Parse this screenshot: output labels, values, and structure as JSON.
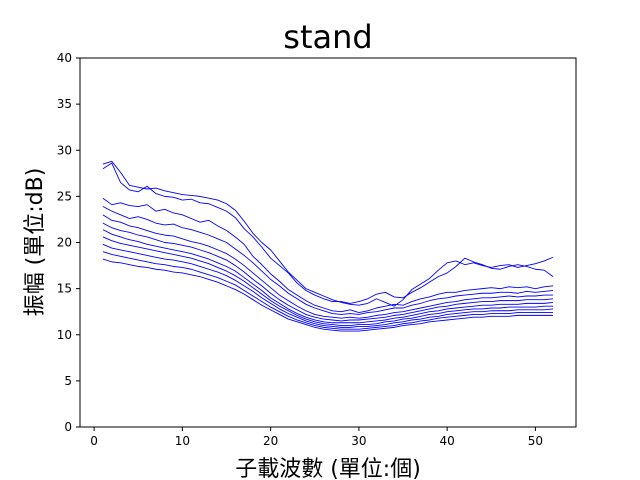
{
  "chart_data": {
    "type": "line",
    "title": "stand",
    "xlabel": "子載波數 (單位:個)",
    "ylabel": "振幅 (單位:dB)",
    "xlim": [
      -1.6,
      54.6
    ],
    "ylim": [
      0,
      40
    ],
    "xticks": [
      "0",
      "10",
      "20",
      "30",
      "40",
      "50"
    ],
    "yticks": [
      "0",
      "5",
      "10",
      "15",
      "20",
      "25",
      "30",
      "35",
      "40"
    ],
    "grid": false,
    "legend": "none",
    "line_color": "#0000ff",
    "x": [
      1,
      2,
      3,
      4,
      5,
      6,
      7,
      8,
      9,
      10,
      11,
      12,
      13,
      14,
      15,
      16,
      17,
      18,
      19,
      20,
      21,
      22,
      23,
      24,
      25,
      26,
      27,
      28,
      29,
      30,
      31,
      32,
      33,
      34,
      35,
      36,
      37,
      38,
      39,
      40,
      41,
      42,
      43,
      44,
      45,
      46,
      47,
      48,
      49,
      50,
      51,
      52
    ],
    "series": [
      {
        "values": [
          28.5,
          28.8,
          27.6,
          26.2,
          26.0,
          25.8,
          25.9,
          25.6,
          25.4,
          25.2,
          25.1,
          25.0,
          24.8,
          24.6,
          24.2,
          23.5,
          22.3,
          21.0,
          20.0,
          19.2,
          18.0,
          16.8,
          15.9,
          15.0,
          14.6,
          14.2,
          13.8,
          13.5,
          13.3,
          13.2,
          13.4,
          13.9,
          13.5,
          13.1,
          13.8,
          14.9,
          15.5,
          16.1,
          17.0,
          17.8,
          18.0,
          17.6,
          17.8,
          17.5,
          17.3,
          17.5,
          17.6,
          17.3,
          17.5,
          17.7,
          18.0,
          18.4
        ]
      },
      {
        "values": [
          28.0,
          28.6,
          26.5,
          25.7,
          25.5,
          26.1,
          25.3,
          25.0,
          24.9,
          24.6,
          24.7,
          24.3,
          24.2,
          23.8,
          23.4,
          22.7,
          21.5,
          20.6,
          19.5,
          18.3,
          17.5,
          16.7,
          15.6,
          14.8,
          14.3,
          13.9,
          13.6,
          13.6,
          13.4,
          13.6,
          13.9,
          14.4,
          14.6,
          14.1,
          14.0,
          14.6,
          15.1,
          15.7,
          16.3,
          16.7,
          17.4,
          18.3,
          17.9,
          17.6,
          17.2,
          17.1,
          17.4,
          17.6,
          17.4,
          17.1,
          17.0,
          16.3
        ]
      },
      {
        "values": [
          24.8,
          24.1,
          24.3,
          24.0,
          23.9,
          24.1,
          23.4,
          23.6,
          23.2,
          23.0,
          22.6,
          22.2,
          22.4,
          21.8,
          21.3,
          20.6,
          19.8,
          18.5,
          17.6,
          16.6,
          15.8,
          14.9,
          14.3,
          13.7,
          13.2,
          12.9,
          12.6,
          12.5,
          12.7,
          12.4,
          12.6,
          12.9,
          13.1,
          13.3,
          13.2,
          13.6,
          13.9,
          14.1,
          14.4,
          14.6,
          14.6,
          14.8,
          14.9,
          15.0,
          15.1,
          15.0,
          15.2,
          15.1,
          15.2,
          15.0,
          15.2,
          15.3
        ]
      },
      {
        "values": [
          23.9,
          23.4,
          23.0,
          22.6,
          22.8,
          22.5,
          22.1,
          21.9,
          22.0,
          21.6,
          21.4,
          21.1,
          20.8,
          20.4,
          20.0,
          19.3,
          18.6,
          17.8,
          16.9,
          16.0,
          15.3,
          14.5,
          13.9,
          13.3,
          12.9,
          12.6,
          12.3,
          12.2,
          12.3,
          12.2,
          12.4,
          12.5,
          12.7,
          12.9,
          12.9,
          13.2,
          13.4,
          13.7,
          13.9,
          14.0,
          14.2,
          14.3,
          14.4,
          14.5,
          14.5,
          14.6,
          14.6,
          14.5,
          14.7,
          14.6,
          14.7,
          14.8
        ]
      },
      {
        "values": [
          23.0,
          22.4,
          22.2,
          21.8,
          21.6,
          21.3,
          21.0,
          20.8,
          20.7,
          20.4,
          20.1,
          19.9,
          19.6,
          19.2,
          18.8,
          18.2,
          17.5,
          16.7,
          15.9,
          15.1,
          14.3,
          13.7,
          13.1,
          12.6,
          12.2,
          12.0,
          11.9,
          11.8,
          11.9,
          11.8,
          11.9,
          12.1,
          12.2,
          12.4,
          12.5,
          12.7,
          12.9,
          13.1,
          13.3,
          13.5,
          13.6,
          13.8,
          13.9,
          14.0,
          14.0,
          14.1,
          14.2,
          14.1,
          14.2,
          14.2,
          14.3,
          14.3
        ]
      },
      {
        "values": [
          22.1,
          21.6,
          21.3,
          21.1,
          20.8,
          20.6,
          20.3,
          20.0,
          19.9,
          19.7,
          19.5,
          19.2,
          18.9,
          18.5,
          18.1,
          17.5,
          16.8,
          16.0,
          15.3,
          14.5,
          13.8,
          13.2,
          12.7,
          12.2,
          11.9,
          11.7,
          11.6,
          11.5,
          11.6,
          11.6,
          11.7,
          11.8,
          11.9,
          12.1,
          12.2,
          12.4,
          12.6,
          12.8,
          13.0,
          13.1,
          13.3,
          13.4,
          13.5,
          13.6,
          13.6,
          13.7,
          13.7,
          13.7,
          13.8,
          13.8,
          13.8,
          13.9
        ]
      },
      {
        "values": [
          21.4,
          20.9,
          20.6,
          20.3,
          20.1,
          19.8,
          19.6,
          19.4,
          19.2,
          19.0,
          18.8,
          18.5,
          18.2,
          17.8,
          17.4,
          16.9,
          16.2,
          15.5,
          14.8,
          14.0,
          13.4,
          12.8,
          12.3,
          11.9,
          11.6,
          11.4,
          11.3,
          11.3,
          11.3,
          11.3,
          11.4,
          11.5,
          11.6,
          11.8,
          11.9,
          12.1,
          12.3,
          12.5,
          12.6,
          12.8,
          12.9,
          13.0,
          13.1,
          13.2,
          13.2,
          13.3,
          13.3,
          13.3,
          13.4,
          13.4,
          13.4,
          13.5
        ]
      },
      {
        "values": [
          20.6,
          20.2,
          19.9,
          19.7,
          19.5,
          19.3,
          19.1,
          18.9,
          18.7,
          18.5,
          18.3,
          18.0,
          17.7,
          17.3,
          16.9,
          16.4,
          15.8,
          15.1,
          14.4,
          13.7,
          13.1,
          12.6,
          12.1,
          11.7,
          11.4,
          11.2,
          11.1,
          11.0,
          11.0,
          11.1,
          11.1,
          11.2,
          11.4,
          11.5,
          11.7,
          11.8,
          12.0,
          12.2,
          12.3,
          12.5,
          12.6,
          12.7,
          12.8,
          12.8,
          12.9,
          12.9,
          13.0,
          13.0,
          13.0,
          13.0,
          13.1,
          13.1
        ]
      },
      {
        "values": [
          19.8,
          19.4,
          19.2,
          19.0,
          18.8,
          18.6,
          18.4,
          18.2,
          18.1,
          17.9,
          17.7,
          17.4,
          17.1,
          16.8,
          16.4,
          15.9,
          15.3,
          14.7,
          14.0,
          13.4,
          12.8,
          12.3,
          11.9,
          11.5,
          11.2,
          11.0,
          10.9,
          10.8,
          10.8,
          10.9,
          10.9,
          11.0,
          11.1,
          11.3,
          11.4,
          11.6,
          11.7,
          11.9,
          12.0,
          12.2,
          12.3,
          12.4,
          12.5,
          12.5,
          12.6,
          12.6,
          12.6,
          12.7,
          12.7,
          12.7,
          12.7,
          12.8
        ]
      },
      {
        "values": [
          19.0,
          18.7,
          18.5,
          18.3,
          18.1,
          17.9,
          17.7,
          17.6,
          17.4,
          17.3,
          17.1,
          16.8,
          16.5,
          16.2,
          15.8,
          15.4,
          14.8,
          14.2,
          13.6,
          13.0,
          12.5,
          12.0,
          11.6,
          11.3,
          11.0,
          10.8,
          10.7,
          10.6,
          10.6,
          10.6,
          10.7,
          10.8,
          10.9,
          11.0,
          11.2,
          11.3,
          11.5,
          11.6,
          11.8,
          11.9,
          12.0,
          12.1,
          12.2,
          12.2,
          12.3,
          12.3,
          12.3,
          12.4,
          12.4,
          12.4,
          12.4,
          12.4
        ]
      },
      {
        "values": [
          18.2,
          17.9,
          17.8,
          17.6,
          17.4,
          17.3,
          17.1,
          17.0,
          16.8,
          16.7,
          16.5,
          16.3,
          16.0,
          15.7,
          15.3,
          14.9,
          14.4,
          13.8,
          13.2,
          12.7,
          12.2,
          11.7,
          11.4,
          11.1,
          10.8,
          10.6,
          10.5,
          10.4,
          10.4,
          10.4,
          10.5,
          10.6,
          10.7,
          10.8,
          11.0,
          11.1,
          11.2,
          11.4,
          11.5,
          11.6,
          11.7,
          11.8,
          11.9,
          11.9,
          12.0,
          12.0,
          12.0,
          12.1,
          12.1,
          12.1,
          12.1,
          12.1
        ]
      }
    ]
  }
}
